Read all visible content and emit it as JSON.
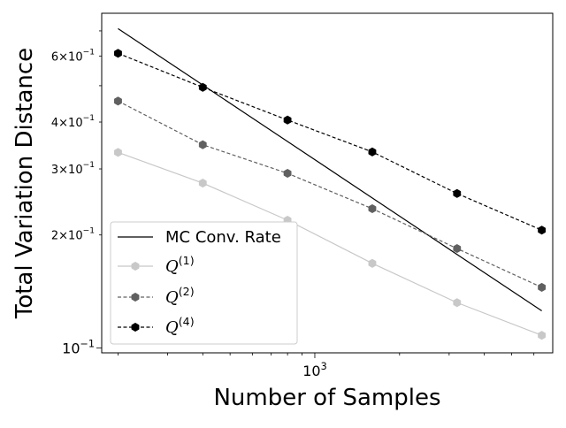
{
  "chart_data": {
    "type": "line",
    "xscale": "log",
    "yscale": "log",
    "xlabel": "Number of Samples",
    "ylabel": "Total Variation Distance",
    "xlim": [
      175,
      7000
    ],
    "ylim": [
      0.097,
      0.78
    ],
    "grid": false,
    "legend_position": "lower-left",
    "x": [
      200,
      400,
      800,
      1600,
      3200,
      6400
    ],
    "series": [
      {
        "name": "MC Conv. Rate",
        "values": [
          0.71,
          0.502,
          0.355,
          0.251,
          0.1775,
          0.1255
        ],
        "color": "#000000",
        "dash": "solid",
        "marker": "none"
      },
      {
        "name": "Q^(1)",
        "values": [
          0.332,
          0.275,
          0.219,
          0.168,
          0.132,
          0.108
        ],
        "color": "#c8c8c8",
        "dash": "solid",
        "marker": "hexagon"
      },
      {
        "name": "Q^(2)",
        "values": [
          0.455,
          0.348,
          0.292,
          0.235,
          0.184,
          0.145
        ],
        "color": "#606060",
        "dash": "dashed",
        "marker": "hexagon"
      },
      {
        "name": "Q^(4)",
        "values": [
          0.61,
          0.495,
          0.405,
          0.333,
          0.258,
          0.206
        ],
        "color": "#000000",
        "dash": "dashed",
        "marker": "hexagon"
      }
    ],
    "x_ticks": [
      {
        "value": 1000,
        "base": "10",
        "exp": "3"
      }
    ],
    "y_ticks": [
      {
        "value": 0.1,
        "base": "10",
        "exp": "−1",
        "mant": "",
        "major": true
      },
      {
        "value": 0.2,
        "mant": "2×",
        "base": "10",
        "exp": "−1",
        "major": false
      },
      {
        "value": 0.3,
        "mant": "3×",
        "base": "10",
        "exp": "−1",
        "major": false
      },
      {
        "value": 0.4,
        "mant": "4×",
        "base": "10",
        "exp": "−1",
        "major": false
      },
      {
        "value": 0.6,
        "mant": "6×",
        "base": "10",
        "exp": "−1",
        "major": false
      }
    ]
  }
}
